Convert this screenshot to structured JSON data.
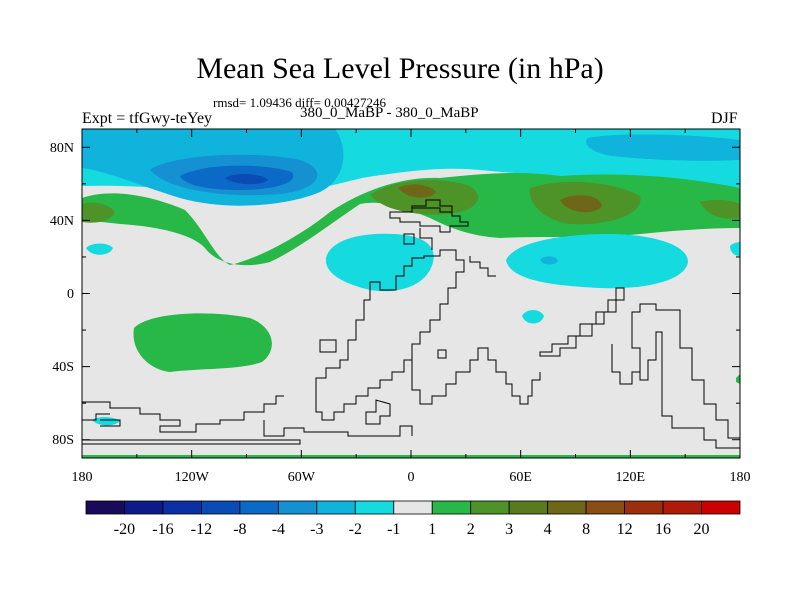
{
  "chart_data": {
    "type": "heatmap",
    "title": "Mean Sea Level Pressure (in hPa)",
    "stats": "rmsd= 1.09436 diff= 0.00427246",
    "experiment": "Expt = tfGwy-teYey",
    "subtitle": "380_0_MaBP - 380_0_MaBP",
    "season": "DJF",
    "xlabel": "",
    "ylabel": "",
    "x_ticks": [
      "180",
      "120W",
      "60W",
      "0",
      "60E",
      "120E",
      "180"
    ],
    "y_ticks": [
      "80N",
      "40N",
      "0",
      "40S",
      "80S"
    ],
    "xlim": [
      -180,
      180
    ],
    "ylim": [
      -90,
      90
    ],
    "colorbar": {
      "labels": [
        "-20",
        "-16",
        "-12",
        "-8",
        "-4",
        "-3",
        "-2",
        "-1",
        "1",
        "2",
        "3",
        "4",
        "8",
        "12",
        "16",
        "20"
      ],
      "colors": [
        "#1a0a5a",
        "#0e1a8a",
        "#0c2fa3",
        "#0a4cb4",
        "#0a6ac6",
        "#1591d2",
        "#10b3dc",
        "#15dbe0",
        "#e6e6e6",
        "#27b848",
        "#4e9328",
        "#5a7a1e",
        "#6e6618",
        "#8a4e14",
        "#9c2e0e",
        "#b01a08",
        "#cc0000"
      ]
    }
  }
}
